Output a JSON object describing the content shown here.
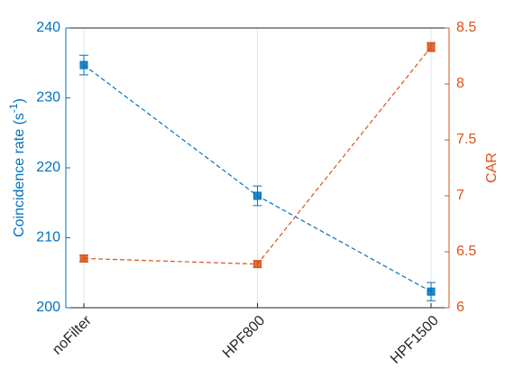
{
  "chart_data": {
    "type": "line",
    "categories": [
      "noFilter",
      "HPF800",
      "HPF1500"
    ],
    "y_label": {
      "text": "Coincidence rate (s",
      "superscript": "-1",
      "suffix": ")"
    },
    "y2_label": "CAR",
    "ylim": [
      200,
      240
    ],
    "yticks": [
      200,
      210,
      220,
      230,
      240
    ],
    "y2lim": [
      6,
      8.5
    ],
    "y2ticks": [
      6,
      6.5,
      7,
      7.5,
      8,
      8.5
    ],
    "grid": true,
    "series": [
      {
        "color": "#0072bd",
        "values": [
          234.7,
          216.0,
          202.3
        ],
        "errors": [
          1.4,
          1.4,
          1.3
        ]
      },
      {
        "color": "#d95319",
        "axis": "y2",
        "values": [
          6.44,
          6.39,
          8.33
        ],
        "errors": [
          0.03,
          0.03,
          0.04
        ]
      }
    ]
  }
}
